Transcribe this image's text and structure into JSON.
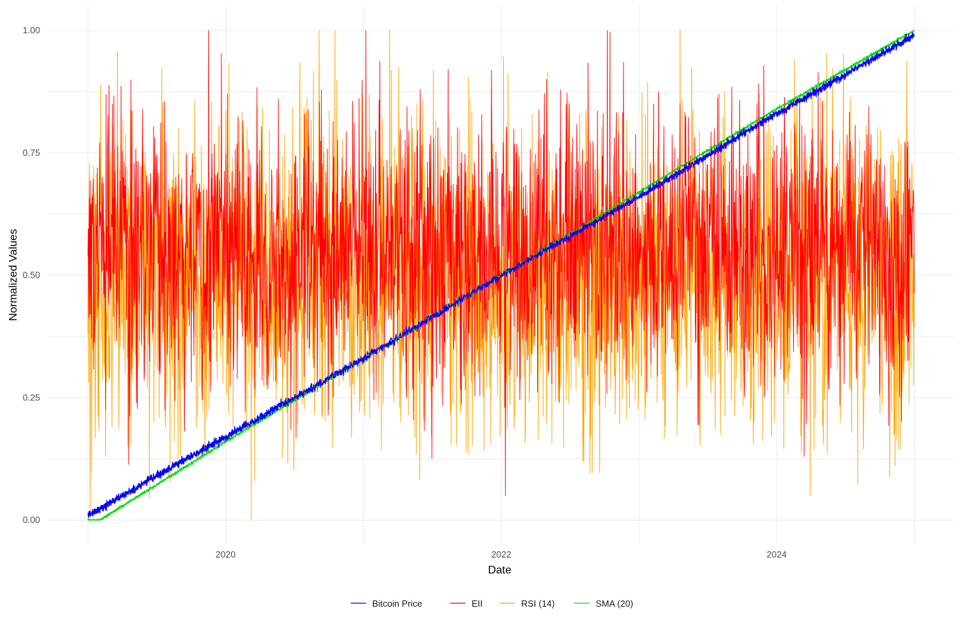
{
  "chart_data": {
    "type": "line",
    "title": "",
    "xlabel": "Date",
    "ylabel": "Normalized Values",
    "x_range": [
      "2019-01-01",
      "2024-12-31"
    ],
    "ylim": [
      0,
      1
    ],
    "x_ticks": [
      {
        "date": "2020-01-01",
        "label": "2020"
      },
      {
        "date": "2022-01-01",
        "label": "2022"
      },
      {
        "date": "2024-01-01",
        "label": "2024"
      }
    ],
    "y_ticks": [
      {
        "value": 0.0,
        "label": "0.00"
      },
      {
        "value": 0.25,
        "label": "0.25"
      },
      {
        "value": 0.5,
        "label": "0.50"
      },
      {
        "value": 0.75,
        "label": "0.75"
      },
      {
        "value": 1.0,
        "label": "1.00"
      }
    ],
    "grid": true,
    "legend_position": "bottom",
    "series": [
      {
        "name": "Bitcoin Price",
        "color": "#0000ff",
        "points": [
          [
            "2019-01-01",
            0.01
          ],
          [
            "2020-01-01",
            0.17
          ],
          [
            "2021-01-01",
            0.33
          ],
          [
            "2022-01-01",
            0.5
          ],
          [
            "2023-01-01",
            0.66
          ],
          [
            "2024-01-01",
            0.83
          ],
          [
            "2024-12-31",
            0.99
          ]
        ]
      },
      {
        "name": "EII",
        "color": "#ff0000",
        "mean": 0.55,
        "min": 0.05,
        "max": 1.0
      },
      {
        "name": "RSI (14)",
        "color": "#ffa500",
        "mean": 0.5,
        "min": 0.0,
        "max": 1.0
      },
      {
        "name": "SMA (20)",
        "color": "#00e000",
        "points": [
          [
            "2019-01-01",
            0.0
          ],
          [
            "2019-02-01",
            0.0
          ],
          [
            "2020-01-01",
            0.16
          ],
          [
            "2021-01-01",
            0.33
          ],
          [
            "2022-01-01",
            0.5
          ],
          [
            "2023-01-01",
            0.67
          ],
          [
            "2024-01-01",
            0.84
          ],
          [
            "2024-12-31",
            1.0
          ]
        ]
      }
    ]
  }
}
